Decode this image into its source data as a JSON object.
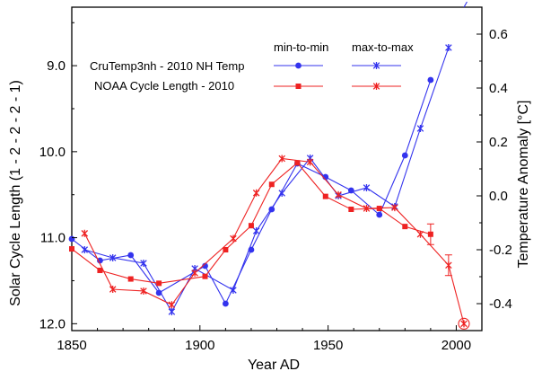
{
  "chart_data": {
    "type": "line",
    "xlabel": "Year AD",
    "ylabel": "Solar Cycle Length  (1 - 2 - 2 - 2 - 1)",
    "y2label": "Temperature Anomaly  [°C]",
    "xlim": [
      1850,
      2010
    ],
    "ylim": [
      12.08,
      8.32
    ],
    "y2lim": [
      -0.5,
      0.7
    ],
    "xticks": [
      "1850",
      "1900",
      "1950",
      "2000"
    ],
    "xtick_values": [
      1850,
      1900,
      1950,
      2000
    ],
    "yticks": [
      "9.0",
      "10.0",
      "11.0",
      "12.0"
    ],
    "ytick_values": [
      9.0,
      10.0,
      11.0,
      12.0
    ],
    "y2ticks": [
      "0.6",
      "0.4",
      "0.2",
      "0.0",
      "-0.2",
      "-0.4"
    ],
    "y2tick_values": [
      0.6,
      0.4,
      0.2,
      0.0,
      -0.2,
      -0.4
    ],
    "grid": false,
    "legend": {
      "position": "top-right",
      "header_min": "min-to-min",
      "header_max": "max-to-max",
      "entries": [
        {
          "label": "CruTemp3nh - 2010 NH Temp",
          "color": "#3333ee"
        },
        {
          "label": "NOAA Cycle Length - 2010",
          "color": "#ee2222"
        }
      ]
    },
    "series": [
      {
        "color": "#3333ee",
        "marker": "circle",
        "axis": "right",
        "x": [
          1850,
          1861,
          1873,
          1884,
          1902,
          1910,
          1920,
          1928,
          1938,
          1949,
          1959,
          1970,
          1980,
          1990
        ],
        "y": [
          -0.16,
          -0.24,
          -0.22,
          -0.36,
          -0.26,
          -0.4,
          -0.2,
          -0.05,
          0.12,
          0.07,
          0.02,
          -0.07,
          0.15,
          0.43
        ]
      },
      {
        "color": "#3333ee",
        "marker": "star",
        "axis": "right",
        "x": [
          1855,
          1866,
          1878,
          1889,
          1898,
          1913,
          1922,
          1932,
          1943,
          1954,
          1965,
          1976,
          1986,
          1997,
          2000,
          2003
        ],
        "y": [
          -0.2,
          -0.23,
          -0.25,
          -0.43,
          -0.27,
          -0.35,
          -0.13,
          0.01,
          0.14,
          0.0,
          0.03,
          -0.04,
          0.25,
          0.55,
          0.74,
          0.8
        ]
      },
      {
        "color": "#ee2222",
        "marker": "square",
        "axis": "left",
        "x": [
          1850,
          1861,
          1873,
          1884,
          1902,
          1910,
          1920,
          1928,
          1938,
          1949,
          1959,
          1970,
          1980,
          1990
        ],
        "y": [
          11.13,
          11.38,
          11.48,
          11.53,
          11.45,
          11.14,
          10.86,
          10.38,
          10.13,
          10.52,
          10.67,
          10.66,
          10.87,
          10.96
        ]
      },
      {
        "color": "#ee2222",
        "marker": "star",
        "axis": "left",
        "x": [
          1855,
          1866,
          1878,
          1889,
          1898,
          1913,
          1922,
          1932,
          1943,
          1954,
          1965,
          1976,
          1986,
          1997,
          2003
        ],
        "y": [
          10.95,
          11.6,
          11.62,
          11.78,
          11.41,
          11.01,
          10.48,
          10.08,
          10.12,
          10.5,
          10.66,
          10.65,
          10.96,
          11.32,
          12.0
        ]
      }
    ]
  }
}
